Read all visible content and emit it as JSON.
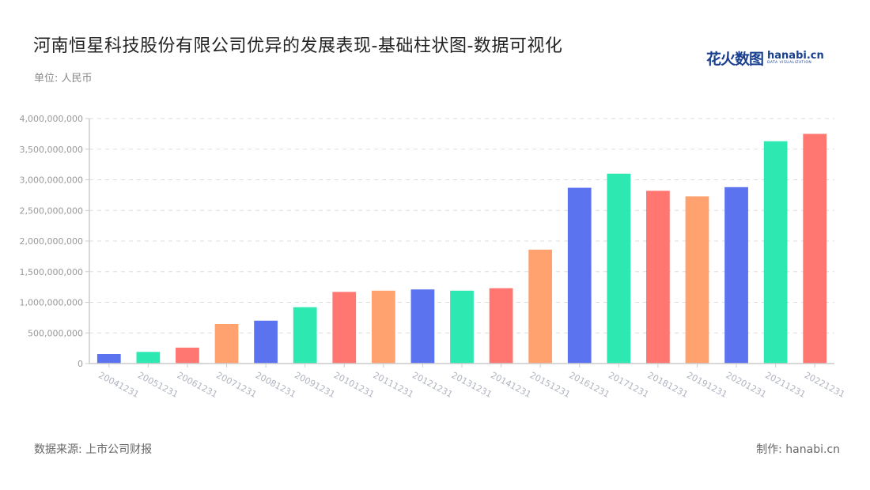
{
  "header": {
    "title": "河南恒星科技股份有限公司优异的发展表现-基础柱状图-数据可视化",
    "unit": "单位: 人民币"
  },
  "logo": {
    "cn": "花火数图",
    "en": "hanabi.cn",
    "sub": "DATA VISUALIZATION"
  },
  "footer": {
    "source": "数据来源: 上市公司财报",
    "credit": "制作: hanabi.cn"
  },
  "colors": {
    "palette": [
      "#5b73ef",
      "#2ee8b1",
      "#ff7770",
      "#ffa26f"
    ],
    "grid": "#dddddd",
    "axis": "#cccccc"
  },
  "chart_data": {
    "type": "bar",
    "title": "河南恒星科技股份有限公司优异的发展表现-基础柱状图-数据可视化",
    "xlabel": "",
    "ylabel": "单位: 人民币",
    "ylim": [
      0,
      4000000000
    ],
    "yticks": [
      0,
      500000000,
      1000000000,
      1500000000,
      2000000000,
      2500000000,
      3000000000,
      3500000000,
      4000000000
    ],
    "ytick_labels": [
      "0",
      "500,000,000",
      "1,000,000,000",
      "1,500,000,000",
      "2,000,000,000",
      "2,500,000,000",
      "3,000,000,000",
      "3,500,000,000",
      "4,000,000,000"
    ],
    "grid": true,
    "legend": "none",
    "categories": [
      "20041231",
      "20051231",
      "20061231",
      "20071231",
      "20081231",
      "20091231",
      "20101231",
      "20111231",
      "20121231",
      "20131231",
      "20141231",
      "20151231",
      "20161231",
      "20171231",
      "20181231",
      "20191231",
      "20201231",
      "20211231",
      "20221231"
    ],
    "values": [
      155000000,
      190000000,
      260000000,
      645000000,
      700000000,
      920000000,
      1170000000,
      1190000000,
      1210000000,
      1190000000,
      1230000000,
      1860000000,
      2870000000,
      3100000000,
      2820000000,
      2730000000,
      2880000000,
      3630000000,
      3750000000
    ],
    "bar_colors": [
      "#5b73ef",
      "#2ee8b1",
      "#ff7770",
      "#ffa26f",
      "#5b73ef",
      "#2ee8b1",
      "#ff7770",
      "#ffa26f",
      "#5b73ef",
      "#2ee8b1",
      "#ff7770",
      "#ffa26f",
      "#5b73ef",
      "#2ee8b1",
      "#ff7770",
      "#ffa26f",
      "#5b73ef",
      "#2ee8b1",
      "#ff7770"
    ]
  }
}
